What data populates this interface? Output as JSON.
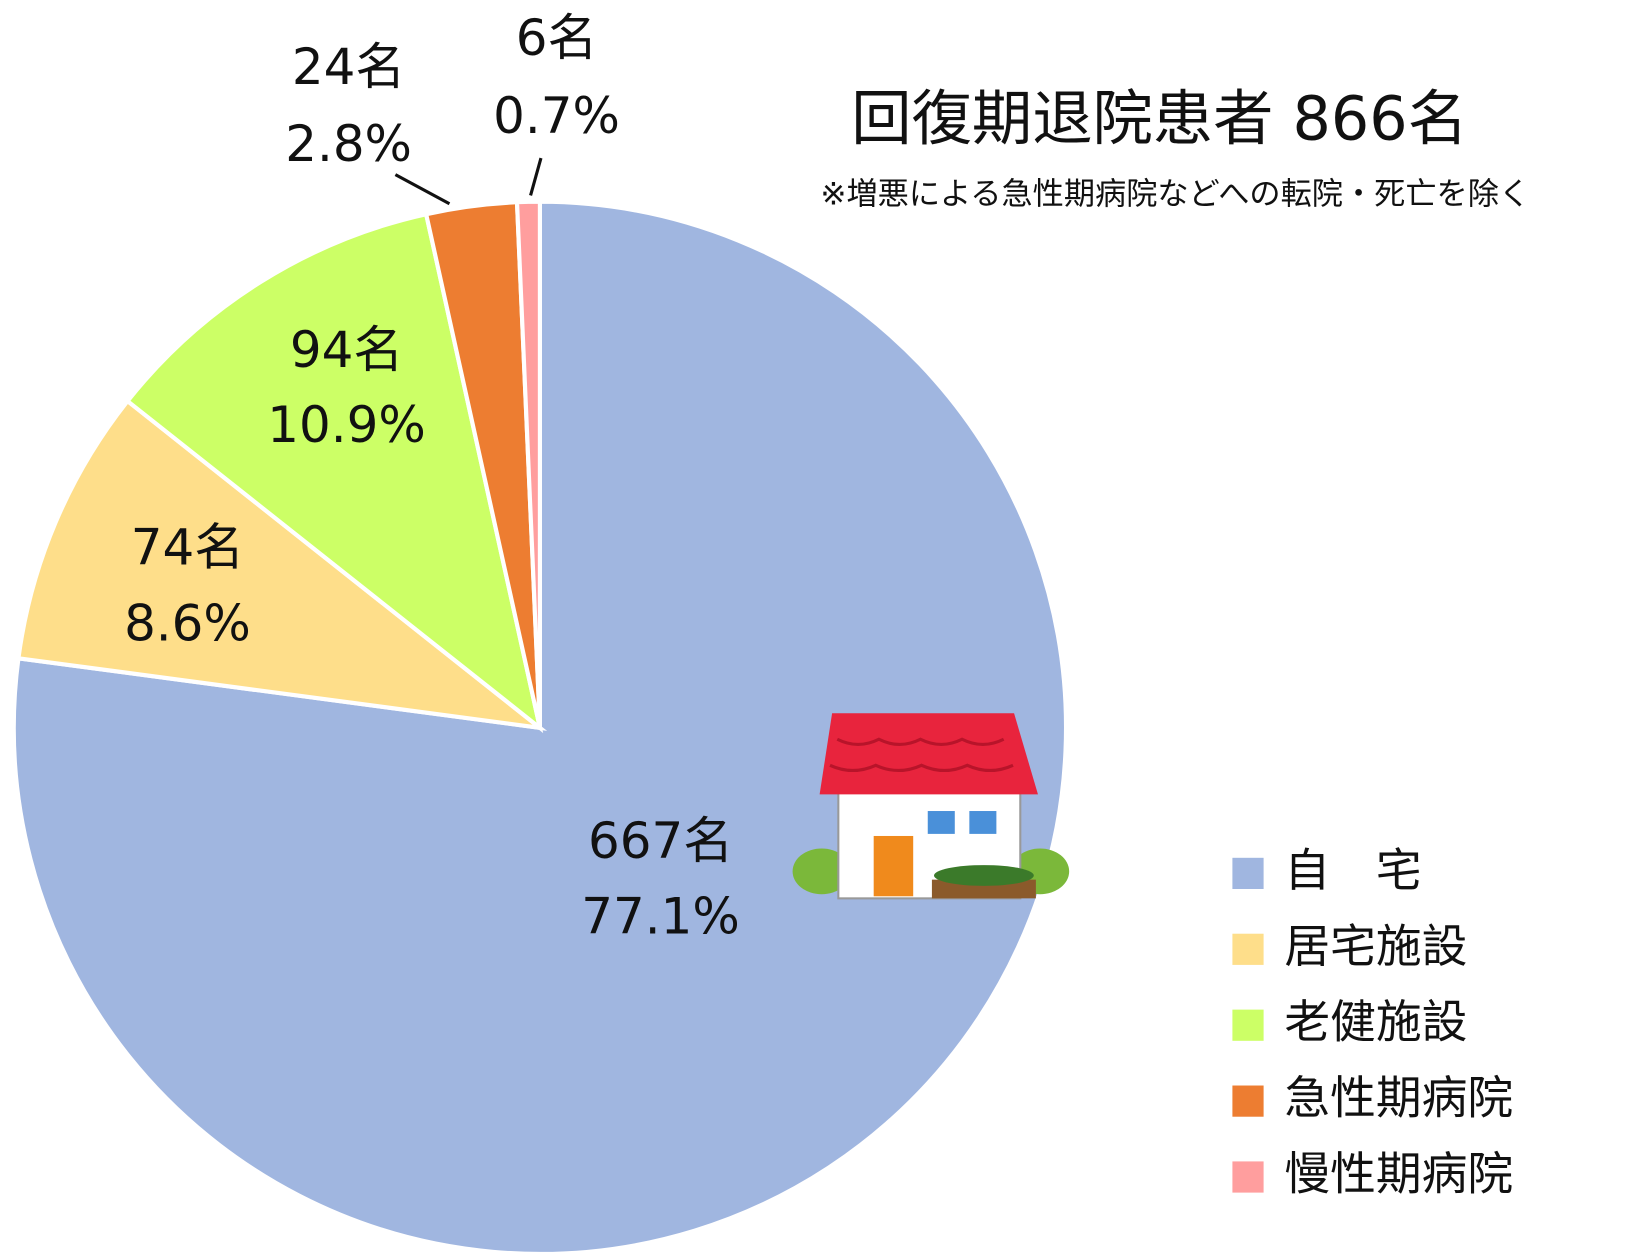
{
  "chart_data": {
    "type": "pie",
    "title": "回復期退院患者 866名",
    "subtitle": "※増悪による急性期病院などへの転院・死亡を除く",
    "categories": [
      "自　宅",
      "居宅施設",
      "老健施設",
      "急性期病院",
      "慢性期病院"
    ],
    "values": [
      667,
      74,
      94,
      24,
      6
    ],
    "value_labels": [
      "667名",
      "74名",
      "94名",
      "24名",
      "6名"
    ],
    "percent_labels": [
      "77.1%",
      "8.6%",
      "10.9%",
      "2.8%",
      "0.7%"
    ],
    "colors": [
      "#a0b6e0",
      "#fede8a",
      "#ccff66",
      "#ed7d31",
      "#ff9e9e"
    ],
    "legend": "right"
  }
}
